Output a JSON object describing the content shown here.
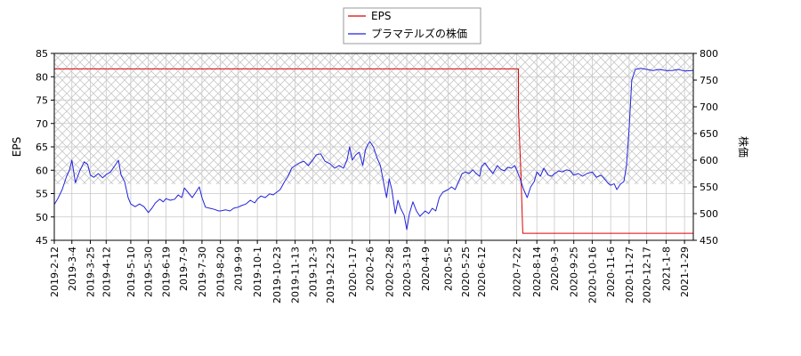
{
  "chart_data": {
    "type": "line",
    "xlabel": "",
    "ylabel_left": "EPS",
    "ylabel_right": "株価",
    "ylim_left": [
      45,
      85
    ],
    "ylim_right": [
      450,
      800
    ],
    "y_ticks_left": [
      "45",
      "50",
      "55",
      "60",
      "65",
      "70",
      "75",
      "80",
      "85"
    ],
    "y_ticks_right": [
      "450",
      "500",
      "550",
      "600",
      "650",
      "700",
      "750",
      "800"
    ],
    "x_range": [
      "2019-02-12",
      "2021-02-08"
    ],
    "x_ticks": [
      "2019-2-12",
      "2019-3-4",
      "2019-3-25",
      "2019-4-12",
      "2019-5-10",
      "2019-5-30",
      "2019-6-19",
      "2019-7-9",
      "2019-7-30",
      "2019-8-20",
      "2019-9-9",
      "2019-10-1",
      "2019-10-23",
      "2019-11-13",
      "2019-12-3",
      "2019-12-23",
      "2020-1-17",
      "2020-2-6",
      "2020-2-28",
      "2020-3-19",
      "2020-4-9",
      "2020-5-5",
      "2020-5-25",
      "2020-6-12",
      "2020-7-22",
      "2020-8-14",
      "2020-9-3",
      "2020-9-25",
      "2020-10-16",
      "2020-11-6",
      "2020-11-27",
      "2020-12-17",
      "2021-1-8",
      "2021-1-29"
    ],
    "grid": true,
    "legend_position": "top-center",
    "hatched_band": {
      "axis": "left",
      "from": 57,
      "to": 85
    },
    "colors": {
      "EPS": "#dd0000",
      "price": "#2222dd",
      "hatch": "#c8c8c8",
      "grid": "#c8c8c8"
    },
    "series": [
      {
        "name": "EPS",
        "axis": "left",
        "points": [
          [
            "2019-02-12",
            81.7
          ],
          [
            "2020-07-24",
            81.7
          ],
          [
            "2020-07-24",
            73.0
          ],
          [
            "2020-07-27",
            58.5
          ],
          [
            "2020-07-29",
            46.5
          ],
          [
            "2021-02-08",
            46.5
          ]
        ]
      },
      {
        "name": "プラマテルズの株価",
        "axis": "right",
        "points": [
          [
            "2019-02-12",
            517
          ],
          [
            "2019-02-16",
            528
          ],
          [
            "2019-02-21",
            545
          ],
          [
            "2019-02-26",
            570
          ],
          [
            "2019-03-01",
            580
          ],
          [
            "2019-03-04",
            600
          ],
          [
            "2019-03-08",
            558
          ],
          [
            "2019-03-13",
            580
          ],
          [
            "2019-03-18",
            597
          ],
          [
            "2019-03-22",
            592
          ],
          [
            "2019-03-25",
            572
          ],
          [
            "2019-03-29",
            568
          ],
          [
            "2019-04-03",
            575
          ],
          [
            "2019-04-08",
            567
          ],
          [
            "2019-04-12",
            573
          ],
          [
            "2019-04-17",
            578
          ],
          [
            "2019-04-22",
            590
          ],
          [
            "2019-04-26",
            600
          ],
          [
            "2019-04-29",
            572
          ],
          [
            "2019-05-03",
            560
          ],
          [
            "2019-05-07",
            530
          ],
          [
            "2019-05-10",
            518
          ],
          [
            "2019-05-15",
            513
          ],
          [
            "2019-05-20",
            518
          ],
          [
            "2019-05-25",
            513
          ],
          [
            "2019-05-30",
            502
          ],
          [
            "2019-06-03",
            510
          ],
          [
            "2019-06-07",
            520
          ],
          [
            "2019-06-12",
            527
          ],
          [
            "2019-06-16",
            522
          ],
          [
            "2019-06-19",
            528
          ],
          [
            "2019-06-24",
            525
          ],
          [
            "2019-06-29",
            527
          ],
          [
            "2019-07-03",
            535
          ],
          [
            "2019-07-07",
            530
          ],
          [
            "2019-07-10",
            548
          ],
          [
            "2019-07-14",
            540
          ],
          [
            "2019-07-19",
            530
          ],
          [
            "2019-07-23",
            540
          ],
          [
            "2019-07-27",
            550
          ],
          [
            "2019-07-30",
            530
          ],
          [
            "2019-08-03",
            512
          ],
          [
            "2019-08-08",
            510
          ],
          [
            "2019-08-13",
            508
          ],
          [
            "2019-08-18",
            505
          ],
          [
            "2019-08-20",
            505
          ],
          [
            "2019-08-26",
            507
          ],
          [
            "2019-08-31",
            505
          ],
          [
            "2019-09-04",
            510
          ],
          [
            "2019-09-09",
            512
          ],
          [
            "2019-09-13",
            515
          ],
          [
            "2019-09-18",
            518
          ],
          [
            "2019-09-23",
            525
          ],
          [
            "2019-09-28",
            520
          ],
          [
            "2019-10-01",
            527
          ],
          [
            "2019-10-05",
            533
          ],
          [
            "2019-10-10",
            530
          ],
          [
            "2019-10-15",
            537
          ],
          [
            "2019-10-19",
            535
          ],
          [
            "2019-10-23",
            540
          ],
          [
            "2019-10-27",
            545
          ],
          [
            "2019-11-01",
            560
          ],
          [
            "2019-11-05",
            570
          ],
          [
            "2019-11-09",
            585
          ],
          [
            "2019-11-13",
            590
          ],
          [
            "2019-11-18",
            595
          ],
          [
            "2019-11-23",
            598
          ],
          [
            "2019-11-28",
            590
          ],
          [
            "2019-12-03",
            600
          ],
          [
            "2019-12-07",
            610
          ],
          [
            "2019-12-12",
            612
          ],
          [
            "2019-12-17",
            598
          ],
          [
            "2019-12-23",
            593
          ],
          [
            "2019-12-28",
            585
          ],
          [
            "2020-01-02",
            590
          ],
          [
            "2020-01-07",
            585
          ],
          [
            "2020-01-11",
            600
          ],
          [
            "2020-01-14",
            625
          ],
          [
            "2020-01-17",
            600
          ],
          [
            "2020-01-21",
            610
          ],
          [
            "2020-01-25",
            615
          ],
          [
            "2020-01-29",
            590
          ],
          [
            "2020-02-01",
            620
          ],
          [
            "2020-02-04",
            630
          ],
          [
            "2020-02-06",
            635
          ],
          [
            "2020-02-10",
            625
          ],
          [
            "2020-02-14",
            605
          ],
          [
            "2020-02-18",
            590
          ],
          [
            "2020-02-22",
            555
          ],
          [
            "2020-02-25",
            530
          ],
          [
            "2020-02-28",
            565
          ],
          [
            "2020-03-02",
            545
          ],
          [
            "2020-03-06",
            500
          ],
          [
            "2020-03-09",
            525
          ],
          [
            "2020-03-12",
            510
          ],
          [
            "2020-03-16",
            497
          ],
          [
            "2020-03-19",
            470
          ],
          [
            "2020-03-22",
            500
          ],
          [
            "2020-03-26",
            522
          ],
          [
            "2020-03-30",
            505
          ],
          [
            "2020-04-03",
            495
          ],
          [
            "2020-04-06",
            500
          ],
          [
            "2020-04-09",
            505
          ],
          [
            "2020-04-13",
            500
          ],
          [
            "2020-04-17",
            510
          ],
          [
            "2020-04-21",
            505
          ],
          [
            "2020-04-25",
            530
          ],
          [
            "2020-04-29",
            540
          ],
          [
            "2020-05-05",
            545
          ],
          [
            "2020-05-09",
            550
          ],
          [
            "2020-05-13",
            545
          ],
          [
            "2020-05-17",
            560
          ],
          [
            "2020-05-21",
            575
          ],
          [
            "2020-05-25",
            578
          ],
          [
            "2020-05-29",
            575
          ],
          [
            "2020-06-02",
            582
          ],
          [
            "2020-06-06",
            575
          ],
          [
            "2020-06-10",
            570
          ],
          [
            "2020-06-12",
            588
          ],
          [
            "2020-06-16",
            595
          ],
          [
            "2020-06-20",
            585
          ],
          [
            "2020-06-25",
            575
          ],
          [
            "2020-06-30",
            590
          ],
          [
            "2020-07-04",
            583
          ],
          [
            "2020-07-08",
            580
          ],
          [
            "2020-07-12",
            587
          ],
          [
            "2020-07-16",
            585
          ],
          [
            "2020-07-20",
            590
          ],
          [
            "2020-07-22",
            582
          ],
          [
            "2020-07-26",
            565
          ],
          [
            "2020-07-30",
            545
          ],
          [
            "2020-08-03",
            530
          ],
          [
            "2020-08-07",
            550
          ],
          [
            "2020-08-11",
            560
          ],
          [
            "2020-08-14",
            578
          ],
          [
            "2020-08-18",
            570
          ],
          [
            "2020-08-22",
            585
          ],
          [
            "2020-08-27",
            572
          ],
          [
            "2020-08-31",
            570
          ],
          [
            "2020-09-03",
            575
          ],
          [
            "2020-09-08",
            580
          ],
          [
            "2020-09-12",
            578
          ],
          [
            "2020-09-17",
            582
          ],
          [
            "2020-09-21",
            580
          ],
          [
            "2020-09-25",
            572
          ],
          [
            "2020-09-30",
            575
          ],
          [
            "2020-10-05",
            570
          ],
          [
            "2020-10-10",
            575
          ],
          [
            "2020-10-16",
            578
          ],
          [
            "2020-10-21",
            568
          ],
          [
            "2020-10-26",
            572
          ],
          [
            "2020-10-30",
            565
          ],
          [
            "2020-11-03",
            557
          ],
          [
            "2020-11-06",
            553
          ],
          [
            "2020-11-10",
            556
          ],
          [
            "2020-11-13",
            545
          ],
          [
            "2020-11-17",
            555
          ],
          [
            "2020-11-21",
            560
          ],
          [
            "2020-11-24",
            590
          ],
          [
            "2020-11-27",
            660
          ],
          [
            "2020-11-30",
            750
          ],
          [
            "2020-12-04",
            770
          ],
          [
            "2020-12-10",
            772
          ],
          [
            "2020-12-17",
            770
          ],
          [
            "2020-12-24",
            768
          ],
          [
            "2020-12-31",
            770
          ],
          [
            "2021-01-08",
            768
          ],
          [
            "2021-01-15",
            768
          ],
          [
            "2021-01-22",
            770
          ],
          [
            "2021-01-29",
            767
          ],
          [
            "2021-02-08",
            768
          ]
        ]
      }
    ]
  }
}
